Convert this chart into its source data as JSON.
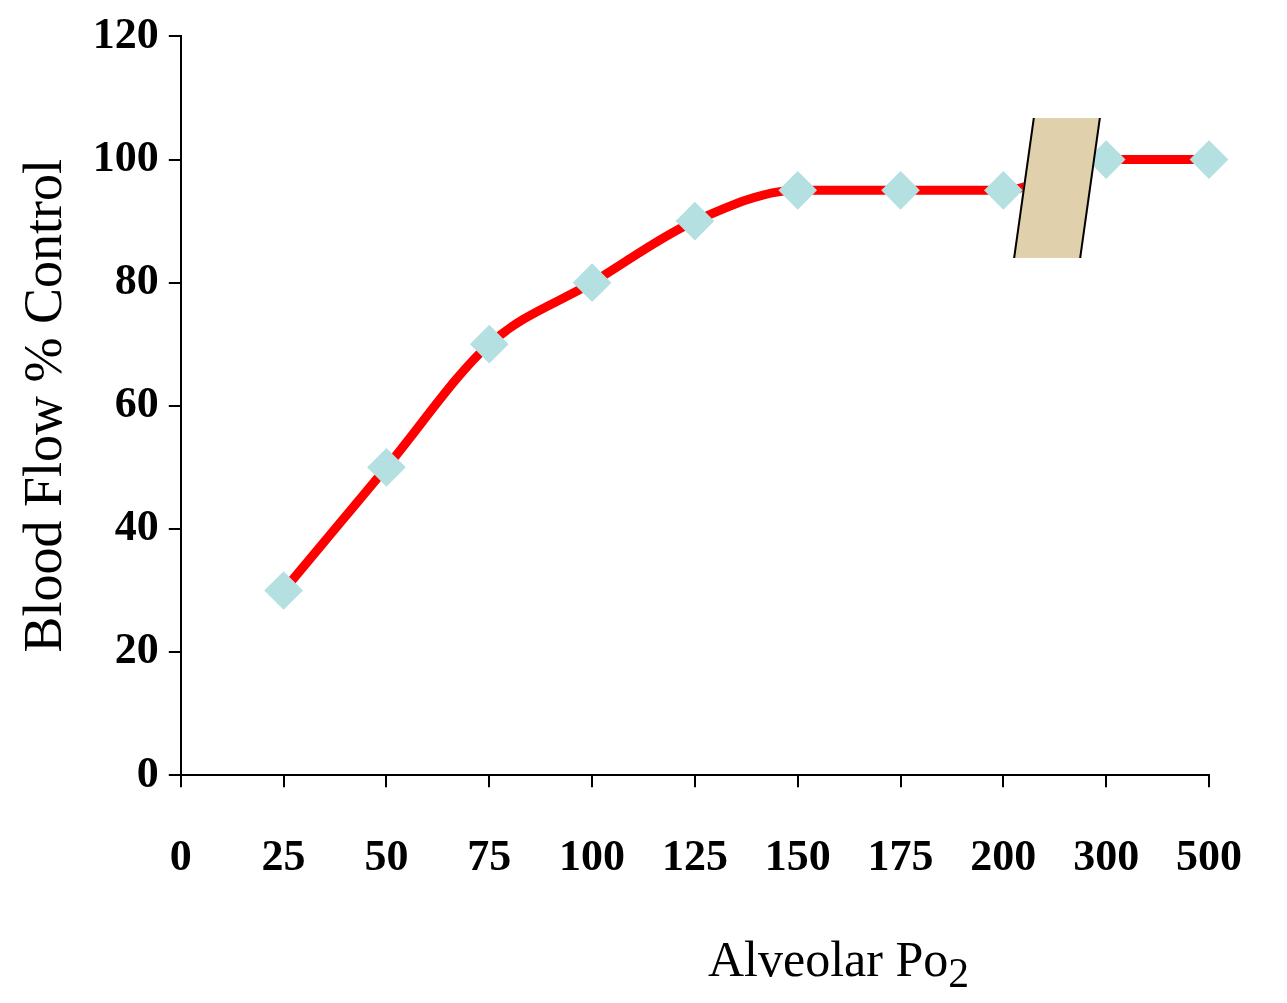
{
  "chart_data": {
    "type": "line",
    "xlabel": "Alveolar Po$_{2}$",
    "ylabel": "Blood Flow % Control",
    "categories": [
      "0",
      "25",
      "50",
      "75",
      "100",
      "125",
      "150",
      "175",
      "200",
      "300",
      "500"
    ],
    "series": [
      {
        "color": "#ff0000",
        "values": [
          null,
          30,
          50,
          70,
          80,
          90,
          95,
          95,
          95,
          100,
          100
        ]
      }
    ],
    "ylim": [
      0,
      120
    ],
    "yticks": [
      0,
      20,
      40,
      60,
      80,
      100,
      120
    ],
    "grid": false,
    "legend": false,
    "marker": "diamond",
    "line_style": "solid"
  }
}
